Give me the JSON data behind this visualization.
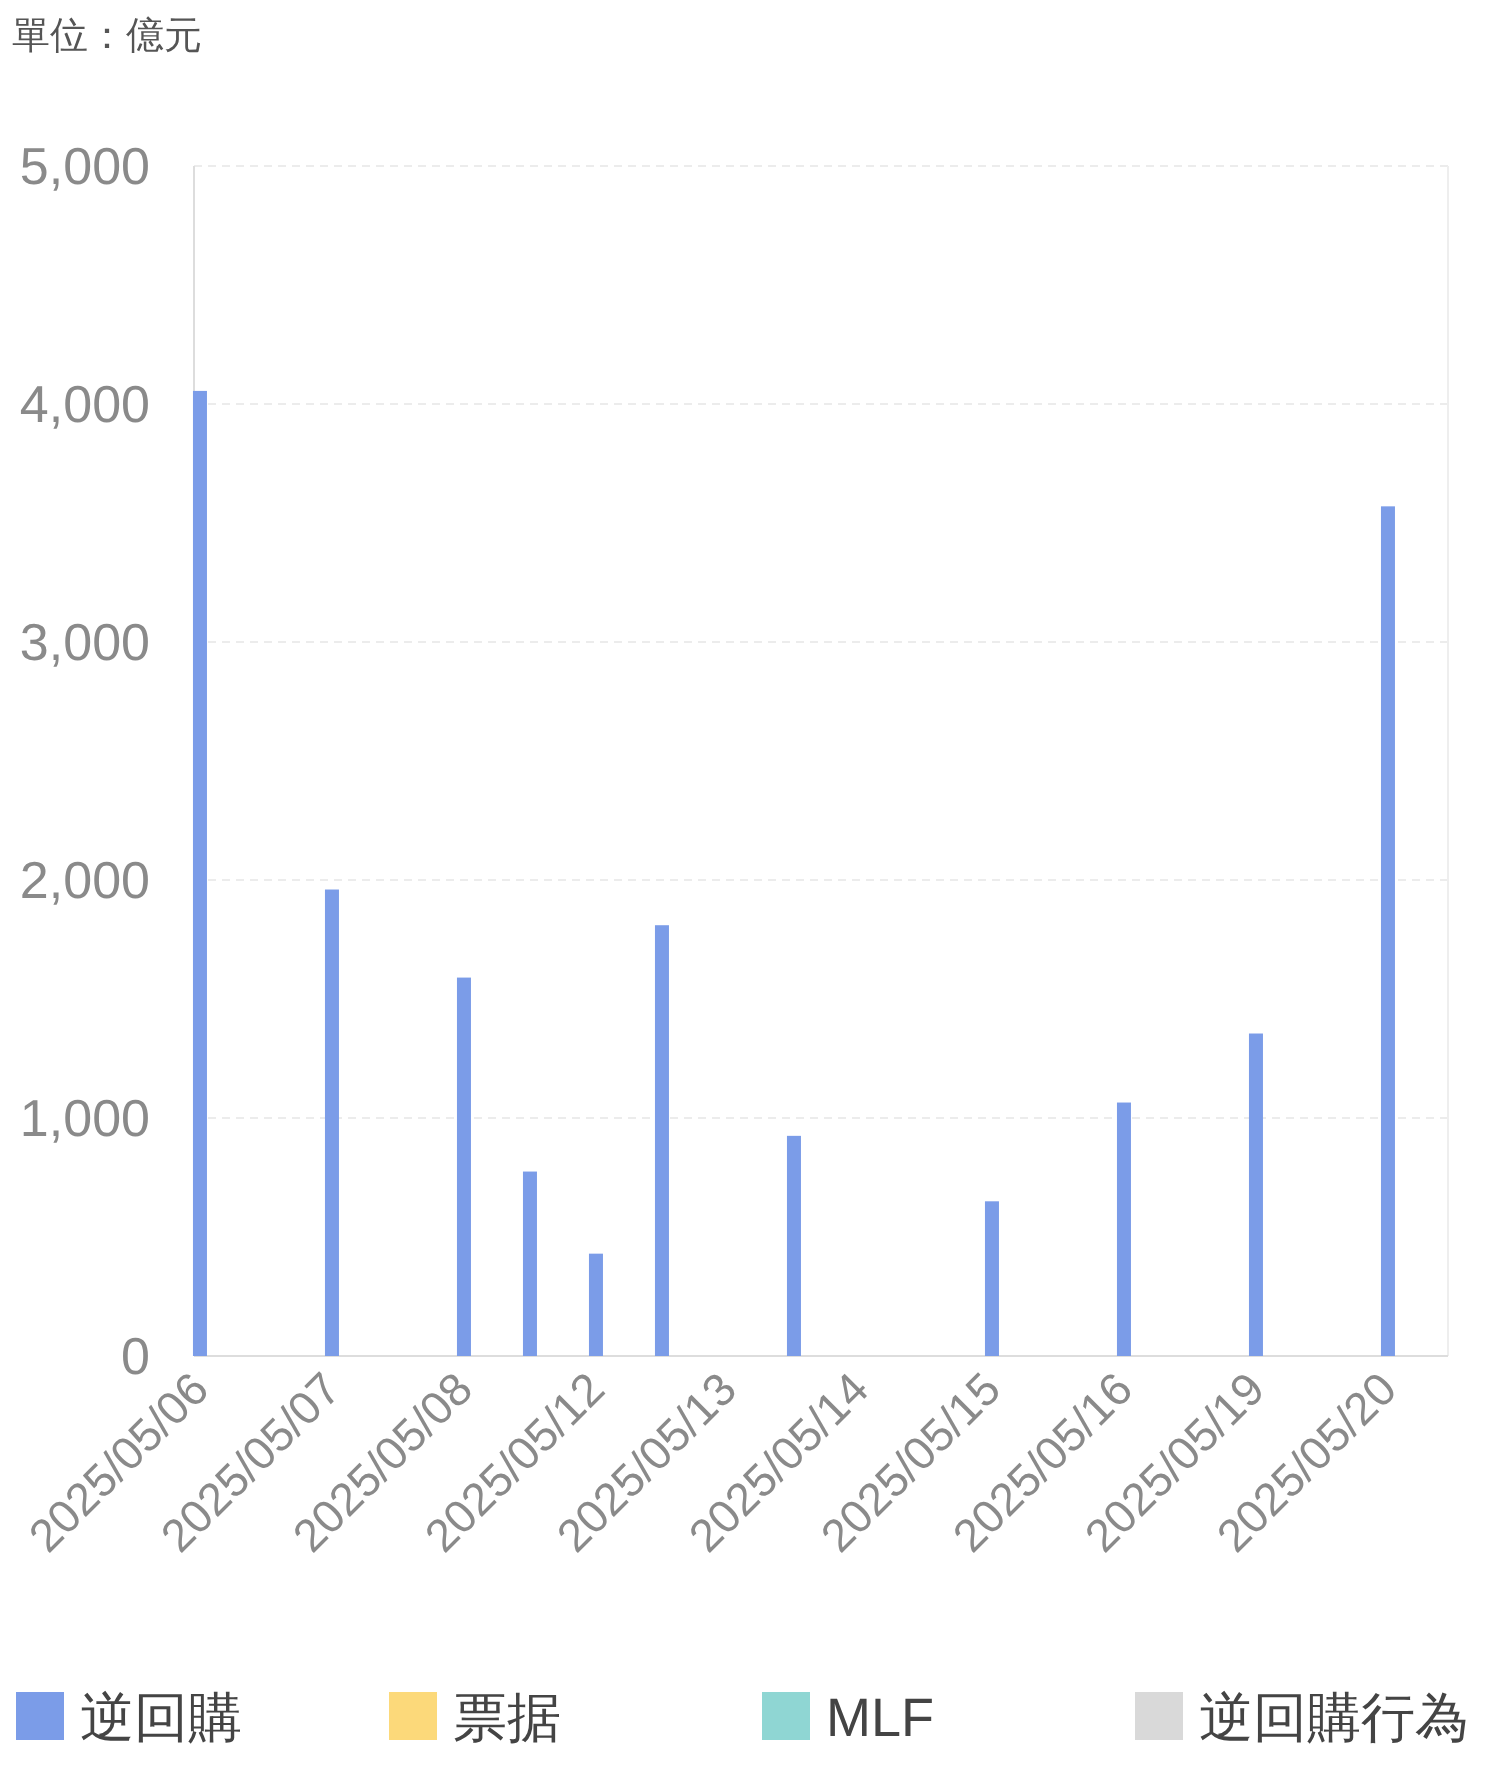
{
  "chart_data": {
    "type": "bar",
    "ylabel": "單位：億元",
    "categories": [
      "2025/05/06",
      null,
      "2025/05/07",
      null,
      "2025/05/08",
      null,
      "2025/05/12",
      null,
      "2025/05/13",
      null,
      "2025/05/14",
      null,
      "2025/05/15",
      null,
      "2025/05/16",
      null,
      "2025/05/19",
      null,
      "2025/05/20"
    ],
    "series": [
      {
        "name": "逆回購",
        "color": "#7b9ce8",
        "values": [
          4055,
          null,
          1960,
          null,
          1590,
          775,
          430,
          1810,
          null,
          925,
          null,
          null,
          650,
          null,
          1065,
          null,
          1355,
          null,
          3570
        ]
      },
      {
        "name": "票据",
        "color": "#fcd97a",
        "values": [
          null,
          null,
          null,
          null,
          null,
          null,
          null,
          null,
          null,
          null,
          null,
          null,
          null,
          null,
          null,
          null,
          null,
          null,
          null
        ]
      },
      {
        "name": "MLF",
        "color": "#8fd6d3",
        "values": [
          null,
          null,
          null,
          null,
          null,
          null,
          null,
          null,
          null,
          null,
          null,
          null,
          null,
          null,
          null,
          null,
          null,
          null,
          null
        ]
      },
      {
        "name": "逆回購行為",
        "color": "#d9d9d9",
        "values": [
          null,
          null,
          null,
          null,
          null,
          null,
          null,
          null,
          null,
          null,
          null,
          null,
          null,
          null,
          null,
          null,
          null,
          null,
          null
        ]
      }
    ],
    "ylim": [
      0,
      5000
    ],
    "yticks": [
      0,
      {
        "value": 1000,
        "label": "1,000"
      },
      {
        "value": 2000,
        "label": "2,000"
      },
      {
        "value": 3000,
        "label": "3,000"
      },
      {
        "value": 4000,
        "label": "4,000"
      },
      {
        "value": 5000,
        "label": "5,000"
      }
    ],
    "grid": "y",
    "legend": "bottom"
  }
}
